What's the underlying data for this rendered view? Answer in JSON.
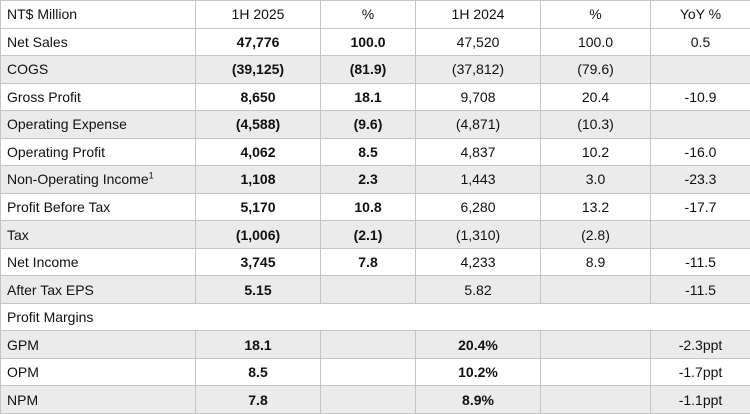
{
  "table": {
    "header": [
      "NT$ Million",
      "1H 2025",
      "%",
      "1H 2024",
      "%",
      "YoY %"
    ],
    "rows": [
      [
        "Net Sales",
        "47,776",
        "100.0",
        "47,520",
        "100.0",
        "0.5"
      ],
      [
        "COGS",
        "(39,125)",
        "(81.9)",
        "(37,812)",
        "(79.6)",
        null
      ],
      [
        "Gross Profit",
        "8,650",
        "18.1",
        "9,708",
        "20.4",
        "-10.9"
      ],
      [
        "Operating Expense",
        "(4,588)",
        "(9.6)",
        "(4,871)",
        "(10.3)",
        null
      ],
      [
        "Operating Profit",
        "4,062",
        "8.5",
        "4,837",
        "10.2",
        "-16.0"
      ],
      [
        "Non-Operating Income",
        "1,108",
        "2.3",
        "1,443",
        "3.0",
        "-23.3"
      ],
      [
        "Profit Before Tax",
        "5,170",
        "10.8",
        "6,280",
        "13.2",
        "-17.7"
      ],
      [
        "Tax",
        "(1,006)",
        "(2.1)",
        "(1,310)",
        "(2.8)",
        null
      ],
      [
        "Net Income",
        "3,745",
        "7.8",
        "4,233",
        "8.9",
        "-11.5"
      ],
      [
        "After Tax EPS",
        "5.15",
        null,
        "5.82",
        null,
        "-11.5"
      ]
    ],
    "footnote_mark": "1",
    "section": "Profit Margins",
    "margin_rows": [
      [
        "GPM",
        "18.1",
        null,
        "20.4%",
        null,
        "-2.3ppt"
      ],
      [
        "OPM",
        "8.5",
        null,
        "10.2%",
        null,
        "-1.7ppt"
      ],
      [
        "NPM",
        "7.8",
        null,
        "8.9%",
        null,
        "-1.1ppt"
      ]
    ]
  }
}
